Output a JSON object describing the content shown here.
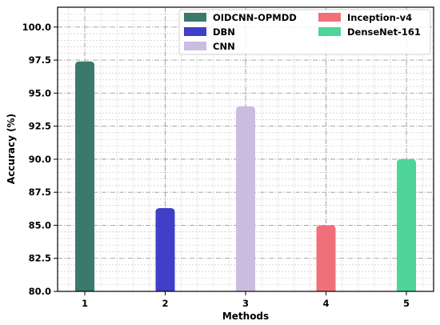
{
  "chart_data": {
    "type": "bar",
    "categories": [
      "1",
      "2",
      "3",
      "4",
      "5"
    ],
    "series": [
      {
        "name": "OIDCNN-OPMDD",
        "values": [
          97.4,
          null,
          null,
          null,
          null
        ],
        "color": "#3a7a6c"
      },
      {
        "name": "DBN",
        "values": [
          null,
          86.3,
          null,
          null,
          null
        ],
        "color": "#3f3fc8"
      },
      {
        "name": "CNN",
        "values": [
          null,
          null,
          94.0,
          null,
          null
        ],
        "color": "#cbbde0"
      },
      {
        "name": "Inception-v4",
        "values": [
          null,
          null,
          null,
          85.0,
          null
        ],
        "color": "#f0707a"
      },
      {
        "name": "DenseNet-161",
        "values": [
          null,
          null,
          null,
          null,
          90.0
        ],
        "color": "#4fd49a"
      }
    ],
    "xlabel": "Methods",
    "ylabel": "Accuracy (%)",
    "ylim": [
      80.0,
      101.5
    ],
    "yticks": [
      "80.0",
      "82.5",
      "85.0",
      "87.5",
      "90.0",
      "92.5",
      "95.0",
      "97.5",
      "100.0"
    ],
    "grid": true,
    "legend_position": "top-right",
    "legend_columns": 2
  }
}
